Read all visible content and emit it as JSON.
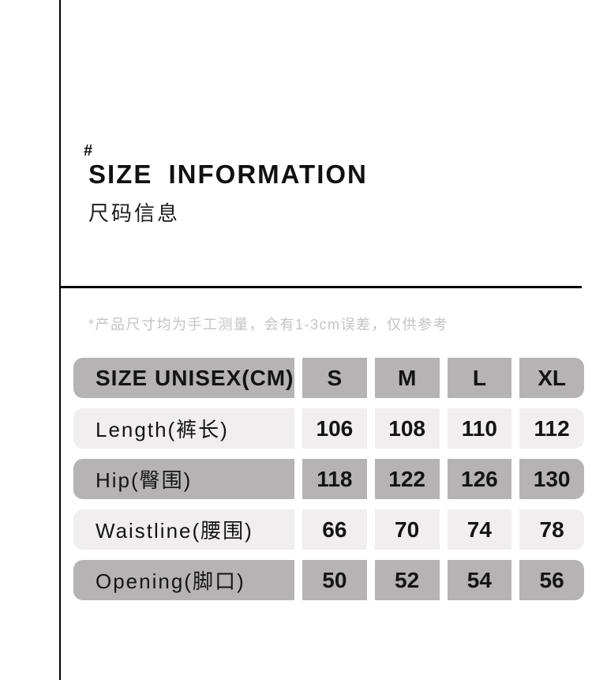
{
  "header": {
    "hash": "#",
    "title_en": "SIZE INFORMATION",
    "title_zh": "尺码信息"
  },
  "note": "*产品尺寸均为手工测量，会有1-3cm误差，仅供参考",
  "size_table": {
    "type": "table",
    "header": {
      "label": "SIZE UNISEX(CM)",
      "sizes": [
        "S",
        "M",
        "L",
        "XL"
      ]
    },
    "rows": [
      {
        "label": "Length(裤长)",
        "values": [
          "106",
          "108",
          "110",
          "112"
        ]
      },
      {
        "label": "Hip(臀围)",
        "values": [
          "118",
          "122",
          "126",
          "130"
        ]
      },
      {
        "label": "Waistline(腰围)",
        "values": [
          "66",
          "70",
          "74",
          "78"
        ]
      },
      {
        "label": "Opening(脚口)",
        "values": [
          "50",
          "52",
          "54",
          "56"
        ]
      }
    ],
    "colors": {
      "header_bg": "#b5b3b3",
      "row_light_bg": "#f0eeee",
      "row_dark_bg": "#b5b3b3",
      "line_color": "#000000",
      "note_text": "#c5c3c3",
      "text": "#141414"
    }
  }
}
